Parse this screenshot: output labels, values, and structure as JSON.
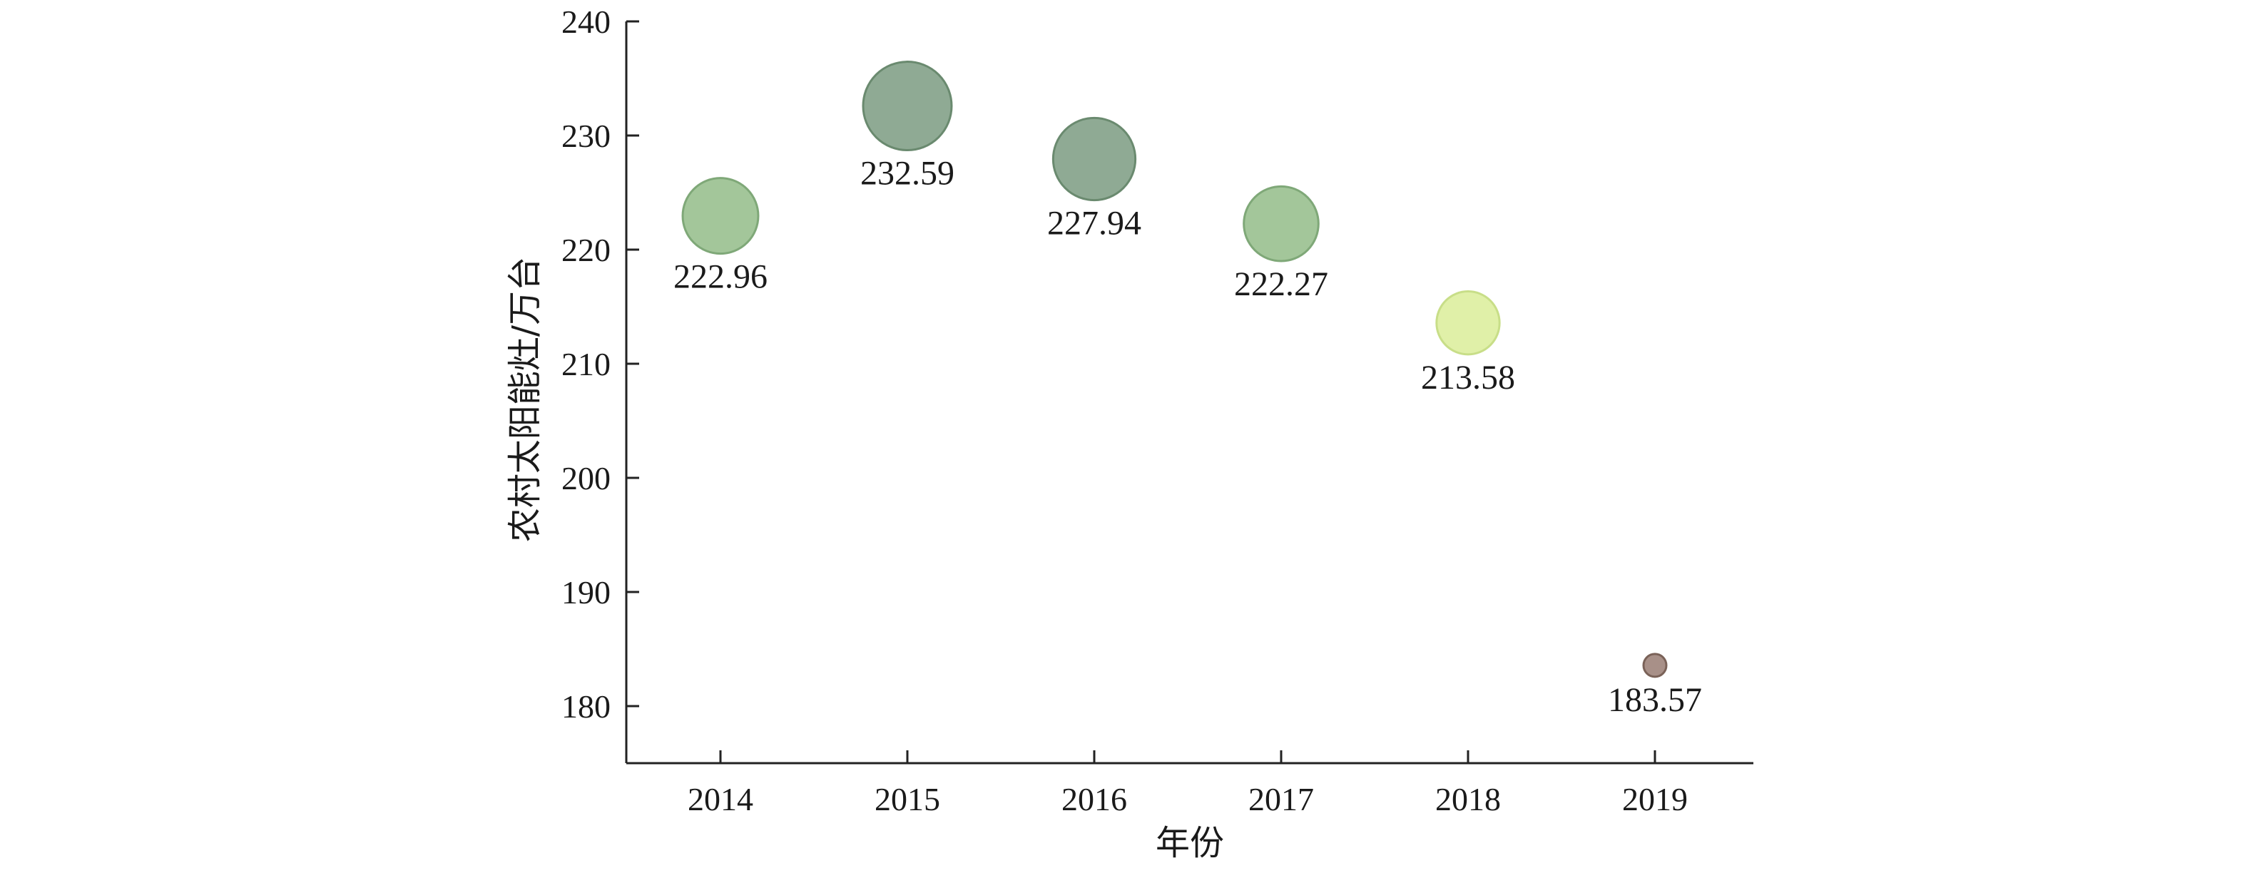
{
  "chart_data": {
    "type": "scatter",
    "title": "",
    "xlabel": "年份",
    "ylabel": "农村太阳能灶/万台",
    "categories": [
      "2014",
      "2015",
      "2016",
      "2017",
      "2018",
      "2019"
    ],
    "values": [
      222.96,
      232.59,
      227.94,
      222.27,
      213.58,
      183.57
    ],
    "data_labels": [
      "222.96",
      "232.59",
      "227.94",
      "222.27",
      "213.58",
      "183.57"
    ],
    "ylim": [
      175,
      240
    ],
    "yticks": [
      180,
      190,
      200,
      210,
      220,
      230,
      240
    ],
    "ytick_labels": [
      "180",
      "190",
      "200",
      "210",
      "220",
      "230",
      "240"
    ],
    "grid": false,
    "legend": "none",
    "bubble_colors": [
      "#a3c69a",
      "#8faa94",
      "#8faa94",
      "#a3c69a",
      "#e0f0a8",
      "#a89088"
    ],
    "bubble_stroke_colors": [
      "#7fa878",
      "#6a8a6f",
      "#6a8a6f",
      "#7fa878",
      "#c8de88",
      "#7a6258"
    ]
  }
}
